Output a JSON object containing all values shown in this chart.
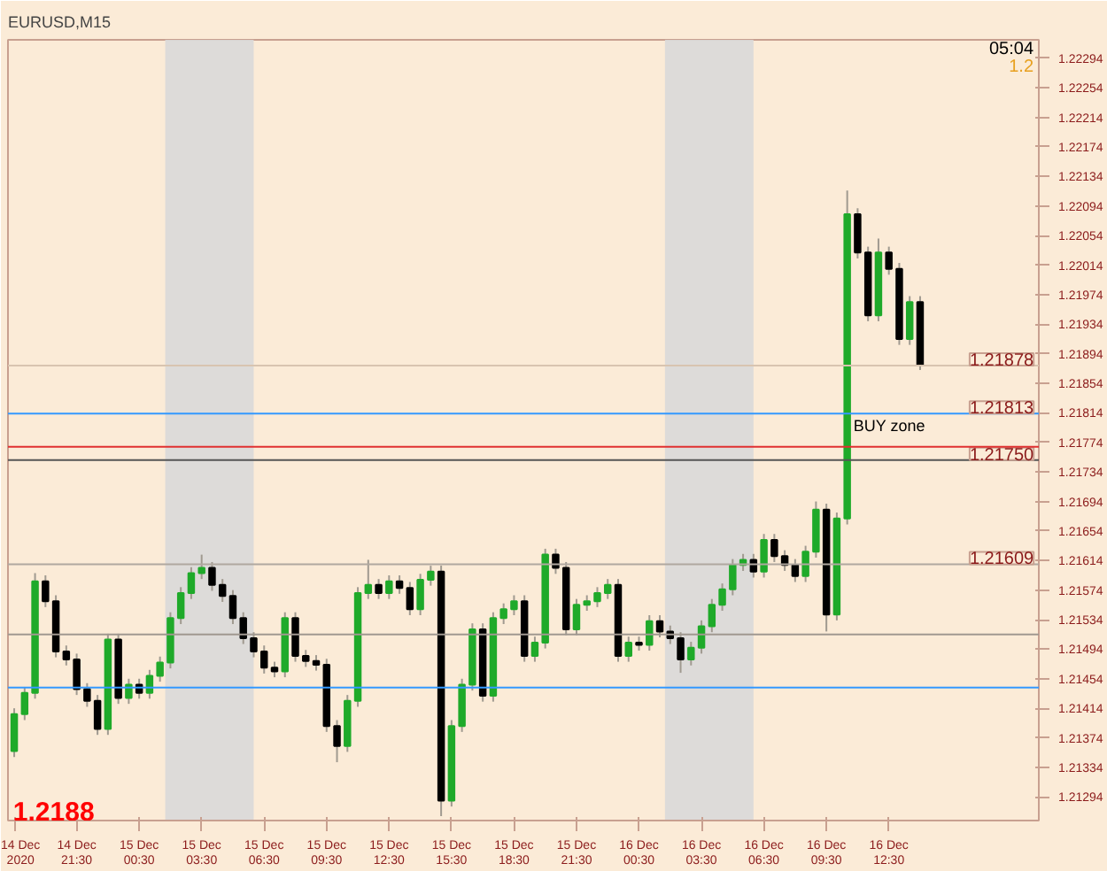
{
  "chart_data": {
    "type": "candlestick",
    "title": "EURUSD,M15",
    "x": [
      "2020-12-14T18:30",
      "2020-12-14T19:00",
      "2020-12-14T19:30",
      "2020-12-14T20:00",
      "2020-12-14T20:30",
      "2020-12-14T21:00",
      "2020-12-14T21:30",
      "2020-12-14T22:00",
      "2020-12-14T22:30",
      "2020-12-14T23:00",
      "2020-12-14T23:30",
      "2020-12-15T00:00",
      "2020-12-15T00:30",
      "2020-12-15T01:00",
      "2020-12-15T01:30",
      "2020-12-15T02:00",
      "2020-12-15T02:30",
      "2020-12-15T03:00",
      "2020-12-15T03:30",
      "2020-12-15T04:00",
      "2020-12-15T04:30",
      "2020-12-15T05:00",
      "2020-12-15T05:30",
      "2020-12-15T06:00",
      "2020-12-15T06:30",
      "2020-12-15T07:00",
      "2020-12-15T07:30",
      "2020-12-15T08:00",
      "2020-12-15T08:30",
      "2020-12-15T09:00",
      "2020-12-15T09:30",
      "2020-12-15T10:00",
      "2020-12-15T10:30",
      "2020-12-15T11:00",
      "2020-12-15T11:30",
      "2020-12-15T12:00",
      "2020-12-15T12:30",
      "2020-12-15T13:00",
      "2020-12-15T13:30",
      "2020-12-15T14:00",
      "2020-12-15T14:30",
      "2020-12-15T15:00",
      "2020-12-15T15:30",
      "2020-12-15T16:00",
      "2020-12-15T16:30",
      "2020-12-15T17:00",
      "2020-12-15T17:30",
      "2020-12-15T18:00",
      "2020-12-15T18:30",
      "2020-12-15T19:00",
      "2020-12-15T19:30",
      "2020-12-15T20:00",
      "2020-12-15T20:30",
      "2020-12-15T21:00",
      "2020-12-15T21:30",
      "2020-12-15T22:00",
      "2020-12-15T22:30",
      "2020-12-15T23:00",
      "2020-12-15T23:30",
      "2020-12-16T00:00",
      "2020-12-16T00:30",
      "2020-12-16T01:00",
      "2020-12-16T01:30",
      "2020-12-16T02:00",
      "2020-12-16T02:30",
      "2020-12-16T03:00",
      "2020-12-16T03:30",
      "2020-12-16T04:00",
      "2020-12-16T04:30",
      "2020-12-16T05:00",
      "2020-12-16T05:30",
      "2020-12-16T06:00",
      "2020-12-16T06:30",
      "2020-12-16T07:00",
      "2020-12-16T07:30",
      "2020-12-16T08:00",
      "2020-12-16T08:30",
      "2020-12-16T09:00",
      "2020-12-16T09:30",
      "2020-12-16T10:00",
      "2020-12-16T10:30",
      "2020-12-16T11:00",
      "2020-12-16T11:30",
      "2020-12-16T12:00",
      "2020-12-16T12:30",
      "2020-12-16T13:00",
      "2020-12-16T13:30",
      "2020-12-16T14:00"
    ],
    "ohlc": [
      [
        1.21356,
        1.21414,
        1.21348,
        1.21406
      ],
      [
        1.21406,
        1.21443,
        1.21398,
        1.21435
      ],
      [
        1.21435,
        1.21597,
        1.21427,
        1.21586
      ],
      [
        1.21586,
        1.21594,
        1.21551,
        1.21559
      ],
      [
        1.21559,
        1.21567,
        1.21483,
        1.21491
      ],
      [
        1.21491,
        1.21499,
        1.21472,
        1.2148
      ],
      [
        1.2148,
        1.21488,
        1.21432,
        1.2144
      ],
      [
        1.2144,
        1.21448,
        1.21416,
        1.21424
      ],
      [
        1.21424,
        1.21432,
        1.21378,
        1.21386
      ],
      [
        1.21386,
        1.21515,
        1.21378,
        1.21507
      ],
      [
        1.21507,
        1.21515,
        1.2142,
        1.21428
      ],
      [
        1.21428,
        1.21454,
        1.2142,
        1.21446
      ],
      [
        1.21446,
        1.21454,
        1.21427,
        1.21435
      ],
      [
        1.21435,
        1.21466,
        1.21427,
        1.21458
      ],
      [
        1.21458,
        1.21484,
        1.2145,
        1.21476
      ],
      [
        1.21476,
        1.21544,
        1.21468,
        1.21536
      ],
      [
        1.21536,
        1.21578,
        1.21528,
        1.2157
      ],
      [
        1.2157,
        1.21605,
        1.21562,
        1.21597
      ],
      [
        1.21597,
        1.21622,
        1.21589,
        1.21604
      ],
      [
        1.21604,
        1.21612,
        1.21573,
        1.21581
      ],
      [
        1.21581,
        1.21589,
        1.21558,
        1.21566
      ],
      [
        1.21566,
        1.21574,
        1.21528,
        1.21536
      ],
      [
        1.21536,
        1.21544,
        1.21501,
        1.21509
      ],
      [
        1.21509,
        1.21517,
        1.21483,
        1.21491
      ],
      [
        1.21491,
        1.21499,
        1.21461,
        1.21469
      ],
      [
        1.21469,
        1.21477,
        1.21456,
        1.21464
      ],
      [
        1.21464,
        1.21544,
        1.21456,
        1.21536
      ],
      [
        1.21536,
        1.21544,
        1.21477,
        1.21485
      ],
      [
        1.21485,
        1.21493,
        1.2147,
        1.21478
      ],
      [
        1.21478,
        1.21486,
        1.21465,
        1.21473
      ],
      [
        1.21473,
        1.21481,
        1.21382,
        1.2139
      ],
      [
        1.2139,
        1.21398,
        1.21341,
        1.21363
      ],
      [
        1.21363,
        1.21432,
        1.21355,
        1.21424
      ],
      [
        1.21424,
        1.21578,
        1.21416,
        1.2157
      ],
      [
        1.2157,
        1.21615,
        1.21562,
        1.21581
      ],
      [
        1.21581,
        1.21589,
        1.21562,
        1.2157
      ],
      [
        1.2157,
        1.21594,
        1.21562,
        1.21586
      ],
      [
        1.21586,
        1.21594,
        1.21569,
        1.21577
      ],
      [
        1.21577,
        1.21585,
        1.2154,
        1.21548
      ],
      [
        1.21548,
        1.21596,
        1.2154,
        1.21588
      ],
      [
        1.21588,
        1.21607,
        1.2158,
        1.21599
      ],
      [
        1.21599,
        1.21607,
        1.21268,
        1.21289
      ],
      [
        1.21289,
        1.21398,
        1.21281,
        1.2139
      ],
      [
        1.2139,
        1.21454,
        1.21382,
        1.21446
      ],
      [
        1.21446,
        1.21529,
        1.21438,
        1.21521
      ],
      [
        1.21521,
        1.21529,
        1.21423,
        1.21431
      ],
      [
        1.21431,
        1.21544,
        1.21423,
        1.21536
      ],
      [
        1.21536,
        1.21556,
        1.21528,
        1.21548
      ],
      [
        1.21548,
        1.21567,
        1.2154,
        1.21559
      ],
      [
        1.21559,
        1.21567,
        1.21477,
        1.21485
      ],
      [
        1.21485,
        1.21511,
        1.21477,
        1.21503
      ],
      [
        1.21503,
        1.2163,
        1.21495,
        1.21622
      ],
      [
        1.21622,
        1.2163,
        1.21596,
        1.21604
      ],
      [
        1.21604,
        1.21612,
        1.21513,
        1.21521
      ],
      [
        1.21521,
        1.21562,
        1.21513,
        1.21554
      ],
      [
        1.21554,
        1.21567,
        1.21546,
        1.21559
      ],
      [
        1.21559,
        1.21578,
        1.21551,
        1.2157
      ],
      [
        1.2157,
        1.21589,
        1.21562,
        1.21581
      ],
      [
        1.21581,
        1.21589,
        1.21477,
        1.21485
      ],
      [
        1.21485,
        1.21511,
        1.21477,
        1.21503
      ],
      [
        1.21503,
        1.21511,
        1.21492,
        1.215
      ],
      [
        1.215,
        1.2154,
        1.21492,
        1.21532
      ],
      [
        1.21532,
        1.2154,
        1.2151,
        1.21518
      ],
      [
        1.21518,
        1.21526,
        1.21501,
        1.21509
      ],
      [
        1.21509,
        1.21517,
        1.21462,
        1.2148
      ],
      [
        1.2148,
        1.21504,
        1.21472,
        1.21496
      ],
      [
        1.21496,
        1.21533,
        1.21488,
        1.21525
      ],
      [
        1.21525,
        1.21562,
        1.21517,
        1.21554
      ],
      [
        1.21554,
        1.21583,
        1.21546,
        1.21575
      ],
      [
        1.21575,
        1.21616,
        1.21567,
        1.21608
      ],
      [
        1.21608,
        1.21623,
        1.216,
        1.21615
      ],
      [
        1.21615,
        1.21623,
        1.21591,
        1.21599
      ],
      [
        1.21599,
        1.2165,
        1.21591,
        1.21642
      ],
      [
        1.21642,
        1.2165,
        1.21612,
        1.2162
      ],
      [
        1.2162,
        1.21628,
        1.216,
        1.21608
      ],
      [
        1.21608,
        1.21616,
        1.21585,
        1.21593
      ],
      [
        1.21593,
        1.21634,
        1.21585,
        1.21626
      ],
      [
        1.21626,
        1.21694,
        1.21618,
        1.21683
      ],
      [
        1.21683,
        1.21691,
        1.21518,
        1.21541
      ],
      [
        1.21541,
        1.21679,
        1.21533,
        1.21671
      ],
      [
        1.21671,
        1.22115,
        1.21663,
        1.22083
      ],
      [
        1.22083,
        1.22091,
        1.22023,
        1.22031
      ],
      [
        1.22031,
        1.22039,
        1.21938,
        1.21946
      ],
      [
        1.21946,
        1.2205,
        1.21938,
        1.22031
      ],
      [
        1.22031,
        1.22039,
        1.22001,
        1.22009
      ],
      [
        1.22009,
        1.22017,
        1.21906,
        1.21914
      ],
      [
        1.21914,
        1.21972,
        1.21906,
        1.21964
      ],
      [
        1.21964,
        1.21972,
        1.21872,
        1.21879
      ]
    ],
    "xlim": [
      "2020-12-14T18:12",
      "2020-12-16T19:42"
    ],
    "ylim": [
      1.21262,
      1.22319
    ],
    "xticks": [
      {
        "value": "2020-12-14T18:30",
        "label": "14 Dec 2020"
      },
      {
        "value": "2020-12-14T21:30",
        "label": "14 Dec 21:30"
      },
      {
        "value": "2020-12-15T00:30",
        "label": "15 Dec 00:30"
      },
      {
        "value": "2020-12-15T03:30",
        "label": "15 Dec 03:30"
      },
      {
        "value": "2020-12-15T06:30",
        "label": "15 Dec 06:30"
      },
      {
        "value": "2020-12-15T09:30",
        "label": "15 Dec 09:30"
      },
      {
        "value": "2020-12-15T12:30",
        "label": "15 Dec 12:30"
      },
      {
        "value": "2020-12-15T15:30",
        "label": "15 Dec 15:30"
      },
      {
        "value": "2020-12-15T18:30",
        "label": "15 Dec 18:30"
      },
      {
        "value": "2020-12-15T21:30",
        "label": "15 Dec 21:30"
      },
      {
        "value": "2020-12-16T00:30",
        "label": "16 Dec 00:30"
      },
      {
        "value": "2020-12-16T03:30",
        "label": "16 Dec 03:30"
      },
      {
        "value": "2020-12-16T06:30",
        "label": "16 Dec 06:30"
      },
      {
        "value": "2020-12-16T09:30",
        "label": "16 Dec 09:30"
      },
      {
        "value": "2020-12-16T12:30",
        "label": "16 Dec 12:30"
      }
    ],
    "yticks": [
      1.21294,
      1.21334,
      1.21374,
      1.21414,
      1.21454,
      1.21494,
      1.21534,
      1.21574,
      1.21614,
      1.21654,
      1.21694,
      1.21734,
      1.21774,
      1.21814,
      1.21854,
      1.21894,
      1.21934,
      1.21974,
      1.22014,
      1.22054,
      1.22094,
      1.22134,
      1.22174,
      1.22214,
      1.22254,
      1.22294
    ],
    "bands": [
      {
        "axis": "x",
        "from": "2020-12-15T01:45",
        "to": "2020-12-15T06:00",
        "color": "#d9d9d9"
      },
      {
        "axis": "x",
        "from": "2020-12-16T01:45",
        "to": "2020-12-16T06:00",
        "color": "#d9d9d9"
      }
    ],
    "ref_lines": [
      {
        "axis": "y",
        "value": 1.21813,
        "label": "1.21813",
        "color": "#3399ff"
      },
      {
        "axis": "y",
        "value": 1.2175,
        "label": "1.21750",
        "color": "#555555"
      },
      {
        "axis": "y",
        "value": 1.21609,
        "label": "1.21609",
        "color": "#b0a8a0"
      },
      {
        "axis": "y",
        "value": 1.21878,
        "label": "1.21878",
        "color": "#d8c4b0"
      },
      {
        "axis": "y",
        "value": 1.21768,
        "color": "#e03030"
      },
      {
        "axis": "y",
        "value": 1.21442,
        "color": "#3399ff"
      },
      {
        "axis": "y",
        "value": 1.21514,
        "color": "#a09890"
      }
    ],
    "annotations": [
      "1.2188",
      "05:04",
      "1.2",
      {
        "text": "BUY zone",
        "x": "2020-12-16T10:48",
        "y": 1.21785
      }
    ]
  }
}
